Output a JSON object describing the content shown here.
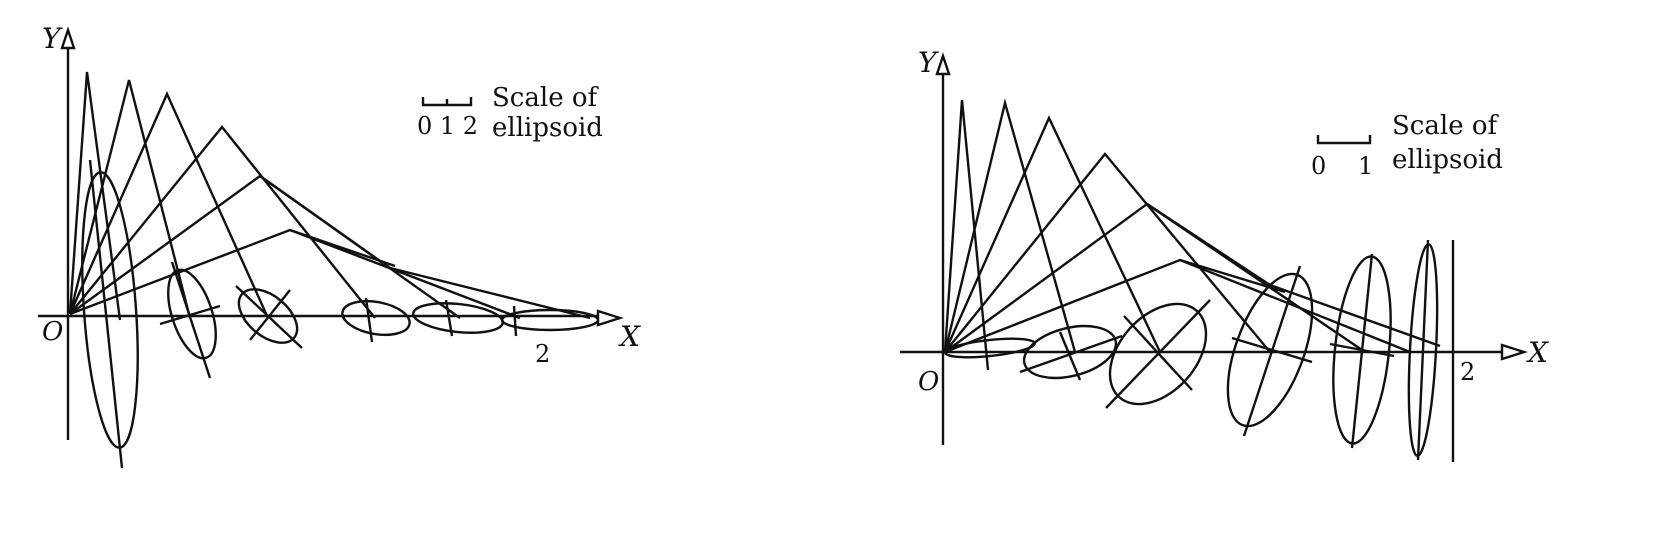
{
  "colors": {
    "ink": "#111111",
    "background": "#ffffff"
  },
  "panels": [
    {
      "id": "left",
      "axis_x_label": "X",
      "axis_y_label": "Y",
      "origin_label": "O",
      "x_tick_label": "2",
      "scale": {
        "numbers": "0 1 2",
        "line1": "Scale of",
        "line2": "ellipsoid"
      }
    },
    {
      "id": "right",
      "axis_x_label": "X",
      "axis_y_label": "Y",
      "origin_label": "O",
      "x_tick_label": "2",
      "scale": {
        "number_left": "0",
        "number_right": "1",
        "line1": "Scale of",
        "line2": "ellipsoid"
      }
    }
  ]
}
